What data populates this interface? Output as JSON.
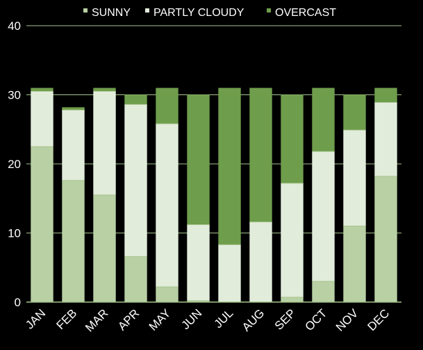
{
  "chart_data": {
    "type": "bar",
    "stacked": true,
    "categories": [
      "JAN",
      "FEB",
      "MAR",
      "APR",
      "MAY",
      "JUN",
      "JUL",
      "AUG",
      "SEP",
      "OCT",
      "NOV",
      "DEC"
    ],
    "series": [
      {
        "name": "SUNNY",
        "color": "#b8d0a4",
        "values": [
          22.5,
          17.6,
          15.5,
          6.6,
          2.2,
          0.2,
          0,
          0,
          0.7,
          3.0,
          11.0,
          18.2
        ]
      },
      {
        "name": "PARTLY CLOUDY",
        "color": "#e2ecdb",
        "values": [
          8.0,
          10.2,
          15.0,
          22.0,
          23.6,
          11.0,
          8.3,
          11.6,
          16.5,
          18.8,
          13.9,
          10.7
        ]
      },
      {
        "name": "OVERCAST",
        "color": "#6e9d4c",
        "values": [
          0.5,
          0.4,
          0.5,
          1.4,
          5.2,
          18.8,
          22.7,
          19.4,
          12.8,
          9.2,
          5.1,
          2.1
        ]
      }
    ],
    "ylim": [
      0,
      40
    ],
    "yticks": [
      "0",
      "10",
      "20",
      "30",
      "40"
    ],
    "grid": true,
    "legend_position": "top"
  }
}
